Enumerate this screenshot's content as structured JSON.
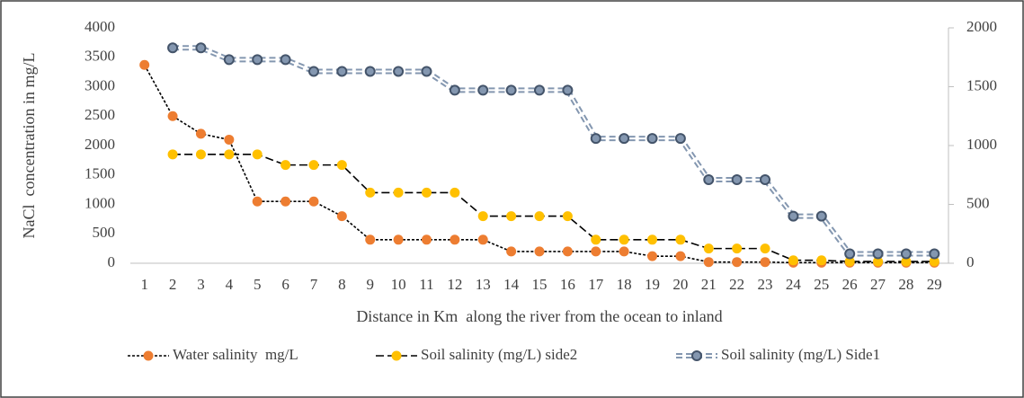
{
  "chart_data": {
    "type": "line",
    "x_label": "Distance in Km  along the river from the ocean to inland",
    "y_label": "NaCl  concentration in mg/L",
    "categories": [
      1,
      2,
      3,
      4,
      5,
      6,
      7,
      8,
      9,
      10,
      11,
      12,
      13,
      14,
      15,
      16,
      17,
      18,
      19,
      20,
      21,
      22,
      23,
      24,
      25,
      26,
      27,
      28,
      29
    ],
    "ylim": [
      0,
      4000
    ],
    "yticks": [
      0,
      500,
      1000,
      1500,
      2000,
      2500,
      3000,
      3500,
      4000
    ],
    "y2lim": [
      0,
      2000
    ],
    "y2ticks": [
      0,
      500,
      1000,
      1500,
      2000
    ],
    "legend": "bottom",
    "series": [
      {
        "name": "Water salinity  mg/L",
        "color": "#ed7d31",
        "line_style": "dotted",
        "values": [
          3370,
          2500,
          2200,
          2100,
          1050,
          1050,
          1050,
          800,
          400,
          400,
          400,
          400,
          400,
          200,
          200,
          200,
          200,
          200,
          120,
          120,
          20,
          20,
          20,
          10,
          10,
          10,
          10,
          10,
          10
        ]
      },
      {
        "name": "Soil salinity (mg/L) side2",
        "color": "#ffc000",
        "line_style": "dashed",
        "values": [
          null,
          1850,
          1850,
          1850,
          1850,
          1670,
          1670,
          1670,
          1200,
          1200,
          1200,
          1200,
          800,
          800,
          800,
          800,
          400,
          400,
          400,
          400,
          250,
          250,
          250,
          50,
          50,
          30,
          30,
          30,
          30
        ]
      },
      {
        "name": "Soil salinity (mg/L) Side1",
        "color": "#44546a",
        "line_style": "double-dashed",
        "axis": "y2",
        "values": [
          null,
          1830,
          1830,
          1730,
          1730,
          1730,
          1630,
          1630,
          1630,
          1630,
          1630,
          1470,
          1470,
          1470,
          1470,
          1470,
          1060,
          1060,
          1060,
          1060,
          710,
          710,
          710,
          400,
          400,
          80,
          80,
          80,
          80
        ]
      }
    ]
  }
}
